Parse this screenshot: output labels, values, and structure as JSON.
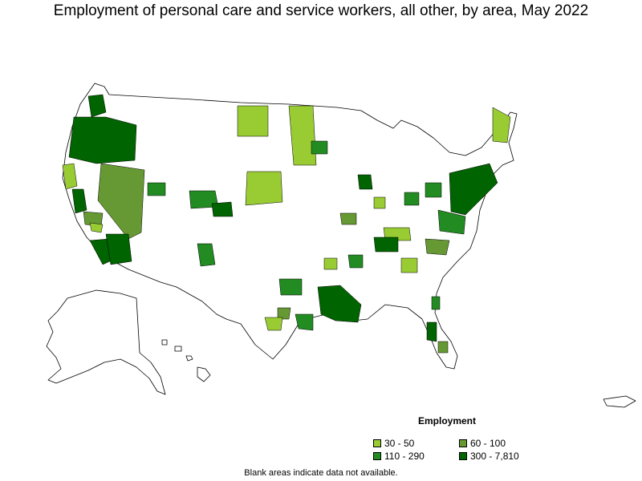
{
  "title": "Employment of personal care and service workers, all other, by area, May 2022",
  "legend": {
    "title": "Employment",
    "items": [
      {
        "label": "30 - 50",
        "color": "#99cc33"
      },
      {
        "label": "60 - 100",
        "color": "#669933"
      },
      {
        "label": "110 - 290",
        "color": "#228b22"
      },
      {
        "label": "300 - 7,810",
        "color": "#006400"
      }
    ]
  },
  "note": "Blank areas indicate data not available."
}
